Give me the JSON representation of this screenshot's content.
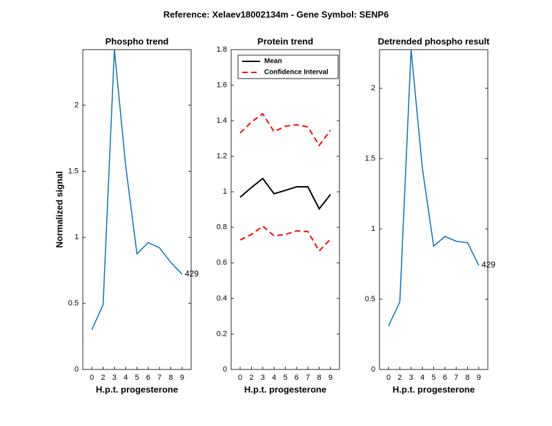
{
  "title": "Reference:  Xelaev18002134m - Gene Symbol:  SENP6",
  "chart_data": [
    {
      "type": "line",
      "title": "Phospho trend",
      "xlabel": "H.p.t. progesterone",
      "ylabel": "Normalized signal",
      "categories": [
        "0",
        "2",
        "3",
        "4",
        "5",
        "6",
        "7",
        "8",
        "9"
      ],
      "series": [
        {
          "color": "#0072bd",
          "values": [
            0.3,
            0.49,
            2.42,
            1.54,
            0.875,
            0.96,
            0.92,
            0.81,
            0.72
          ]
        }
      ],
      "annotation": "429",
      "ylim": [
        0,
        2.42
      ],
      "yticks": [
        0,
        0.5,
        1,
        1.5,
        2
      ]
    },
    {
      "type": "line",
      "title": "Protein trend",
      "xlabel": "H.p.t. progesterone",
      "categories": [
        "0",
        "2",
        "3",
        "4",
        "5",
        "6",
        "7",
        "8",
        "9"
      ],
      "series": [
        {
          "name": "Mean",
          "color": "#000000",
          "values": [
            0.97,
            1.024,
            1.075,
            0.989,
            1.008,
            1.028,
            1.028,
            0.904,
            0.985
          ]
        },
        {
          "name": "Confidence Interval",
          "color": "#ff0000",
          "dashed": true,
          "values": [
            1.331,
            1.393,
            1.439,
            1.338,
            1.369,
            1.377,
            1.365,
            1.261,
            1.346
          ]
        },
        {
          "color": "#ff0000",
          "dashed": true,
          "values": [
            0.729,
            0.76,
            0.807,
            0.752,
            0.76,
            0.78,
            0.776,
            0.667,
            0.733
          ]
        }
      ],
      "legend": "top-left",
      "ylim": [
        0,
        1.8
      ],
      "yticks": [
        0,
        0.2,
        0.4,
        0.6,
        0.8,
        1,
        1.2,
        1.4,
        1.6,
        1.8
      ]
    },
    {
      "type": "line",
      "title": "Detrended phospho result",
      "xlabel": "H.p.t. progesterone",
      "categories": [
        "0",
        "2",
        "3",
        "4",
        "5",
        "6",
        "7",
        "8",
        "9"
      ],
      "series": [
        {
          "color": "#0072bd",
          "values": [
            0.31,
            0.48,
            2.275,
            1.43,
            0.877,
            0.946,
            0.912,
            0.902,
            0.74
          ]
        }
      ],
      "annotation": "429",
      "ylim": [
        0,
        2.275
      ],
      "yticks": [
        0,
        0.5,
        1,
        1.5,
        2
      ]
    }
  ]
}
